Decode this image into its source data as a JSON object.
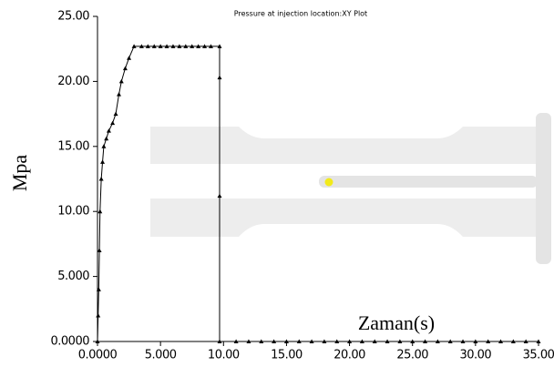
{
  "chart_data": {
    "type": "line",
    "title": "Pressure at injection location:XY Plot",
    "xlabel": "Zaman(s)",
    "ylabel": "Mpa",
    "color": "#000000",
    "x": [
      0,
      0.05,
      0.1,
      0.15,
      0.2,
      0.3,
      0.4,
      0.5,
      0.7,
      0.9,
      1.2,
      1.45,
      1.7,
      1.9,
      2.2,
      2.5,
      2.9,
      3.5,
      4,
      4.5,
      5,
      5.5,
      6,
      6.5,
      7,
      7.5,
      8,
      8.5,
      9,
      9.69,
      9.69,
      9.69,
      9.69,
      11,
      12,
      13,
      14,
      15,
      16,
      17,
      18,
      19,
      20,
      21,
      22,
      23,
      24,
      25,
      26,
      27,
      28,
      29,
      30,
      31,
      32,
      33,
      34,
      35
    ],
    "values": [
      0,
      2,
      4,
      7,
      10,
      12.5,
      13.8,
      15,
      15.6,
      16.2,
      16.8,
      17.5,
      19,
      20,
      21,
      21.8,
      22.7,
      22.7,
      22.7,
      22.7,
      22.7,
      22.7,
      22.7,
      22.7,
      22.7,
      22.7,
      22.7,
      22.7,
      22.7,
      22.7,
      20.3,
      11.2,
      0,
      0,
      0,
      0,
      0,
      0,
      0,
      0,
      0,
      0,
      0,
      0,
      0,
      0,
      0,
      0,
      0,
      0,
      0,
      0,
      0,
      0,
      0,
      0,
      0,
      0
    ],
    "xlim": [
      0,
      35
    ],
    "ylim": [
      0,
      25
    ],
    "xticks": [
      {
        "value": 0,
        "label": "0.0000"
      },
      {
        "value": 5,
        "label": "5.000"
      },
      {
        "value": 10,
        "label": "10.00"
      },
      {
        "value": 15,
        "label": "15.00"
      },
      {
        "value": 20,
        "label": "20.00"
      },
      {
        "value": 25,
        "label": "25.00"
      },
      {
        "value": 30,
        "label": "30.00"
      },
      {
        "value": 35,
        "label": "35.00"
      }
    ],
    "yticks": [
      {
        "value": 0,
        "label": "0.0000"
      },
      {
        "value": 5,
        "label": "5.000"
      },
      {
        "value": 10,
        "label": "10.00"
      },
      {
        "value": 15,
        "label": "15.00"
      },
      {
        "value": 20,
        "label": "20.00"
      },
      {
        "value": 25,
        "label": "25.00"
      }
    ]
  }
}
